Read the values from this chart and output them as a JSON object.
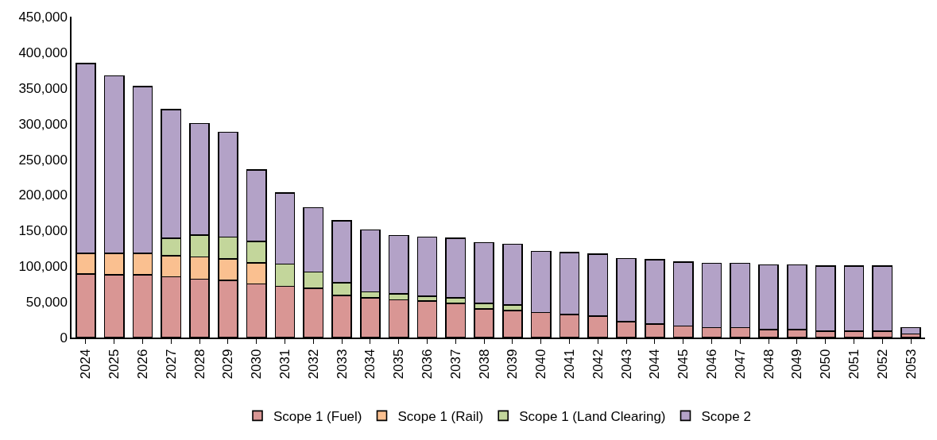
{
  "chart_data": {
    "type": "bar",
    "stacked": true,
    "legend": "bottom",
    "categories": [
      "2024",
      "2025",
      "2026",
      "2027",
      "2028",
      "2029",
      "2030",
      "2031",
      "2032",
      "2033",
      "2034",
      "2035",
      "2036",
      "2037",
      "2038",
      "2039",
      "2040",
      "2041",
      "2042",
      "2043",
      "2044",
      "2045",
      "2046",
      "2047",
      "2048",
      "2049",
      "2050",
      "2051",
      "2052",
      "2053"
    ],
    "ylim": [
      0,
      450000
    ],
    "yticks": [
      {
        "value": 0,
        "label": "0"
      },
      {
        "value": 50000,
        "label": "50,000"
      },
      {
        "value": 100000,
        "label": "100,000"
      },
      {
        "value": 150000,
        "label": "150,000"
      },
      {
        "value": 200000,
        "label": "200,000"
      },
      {
        "value": 250000,
        "label": "250,000"
      },
      {
        "value": 300000,
        "label": "300,000"
      },
      {
        "value": 350000,
        "label": "350,000"
      },
      {
        "value": 400000,
        "label": "400,000"
      },
      {
        "value": 450000,
        "label": "450,000"
      }
    ],
    "series": [
      {
        "name": "Scope 1 (Fuel)",
        "color": "#d99694",
        "values": [
          89000,
          88000,
          88000,
          85000,
          82000,
          80000,
          75000,
          72000,
          69000,
          59000,
          56000,
          53000,
          51000,
          48000,
          40000,
          38000,
          35000,
          32000,
          30000,
          22000,
          19000,
          16000,
          14000,
          14000,
          11000,
          11000,
          9000,
          9000,
          9000,
          5000
        ]
      },
      {
        "name": "Scope 1 (Rail)",
        "color": "#fac090",
        "values": [
          29000,
          30000,
          30000,
          30000,
          31000,
          30000,
          30000,
          null,
          null,
          null,
          null,
          null,
          null,
          null,
          null,
          null,
          null,
          null,
          null,
          null,
          null,
          null,
          null,
          null,
          null,
          null,
          null,
          null,
          null,
          null
        ]
      },
      {
        "name": "Scope 1 (Land Clearing)",
        "color": "#c3d69b",
        "values": [
          null,
          null,
          null,
          24000,
          31000,
          31000,
          30000,
          31000,
          23000,
          18000,
          8000,
          8000,
          7000,
          8000,
          8000,
          8000,
          null,
          null,
          null,
          null,
          null,
          null,
          null,
          null,
          null,
          null,
          null,
          null,
          null,
          null
        ]
      },
      {
        "name": "Scope 2",
        "color": "#b3a2c7",
        "values": [
          266000,
          249000,
          234000,
          181000,
          156000,
          147000,
          100000,
          100000,
          90000,
          87000,
          87000,
          82000,
          83000,
          83000,
          85000,
          85000,
          86000,
          87000,
          87000,
          89000,
          90000,
          90000,
          90000,
          90000,
          91000,
          91000,
          91000,
          91000,
          91000,
          9000
        ]
      }
    ]
  }
}
